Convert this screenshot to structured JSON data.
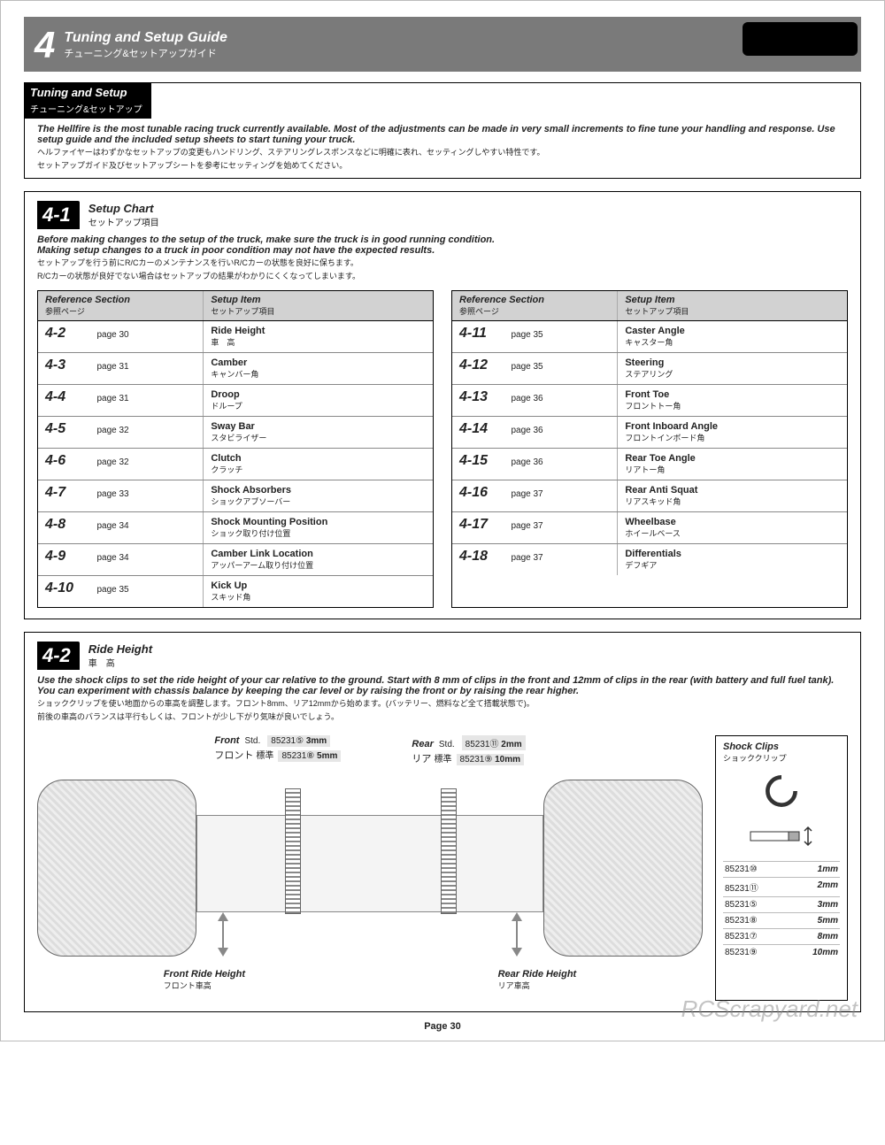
{
  "header": {
    "number": "4",
    "title_en": "Tuning and Setup Guide",
    "title_jp": "チューニング&セットアップガイド"
  },
  "tuning_box": {
    "label_en": "Tuning and Setup",
    "label_jp": "チューニング&セットアップ",
    "body_en": "The Hellfire is the most tunable racing truck currently available. Most of the adjustments can be made in very small increments to fine tune your handling and response. Use setup guide and the included setup sheets to start tuning your truck.",
    "body_jp1": "ヘルファイヤーはわずかなセットアップの変更もハンドリング、ステアリングレスポンスなどに明確に表れ、セッティングしやすい特性です。",
    "body_jp2": "セットアップガイド及びセットアップシートを参考にセッティングを始めてください。"
  },
  "section_41": {
    "sec": "4-1",
    "title_en": "Setup Chart",
    "title_jp": "セットアップ項目",
    "intro_en": "Before making changes to the setup of the truck, make sure the truck is in good running condition.\nMaking setup changes to a truck in poor condition may not have the expected results.",
    "intro_jp1": "セットアップを行う前にR/Cカーのメンテナンスを行いR/Cカーの状態を良好に保ちます。",
    "intro_jp2": "R/Cカーの状態が良好でない場合はセットアップの結果がわかりにくくなってしまいます。",
    "col_ref_en": "Reference Section",
    "col_ref_jp": "参照ページ",
    "col_item_en": "Setup Item",
    "col_item_jp": "セットアップ項目",
    "rows_left": [
      {
        "sec": "4-2",
        "page": "page 30",
        "en": "Ride Height",
        "jp": "車　高"
      },
      {
        "sec": "4-3",
        "page": "page 31",
        "en": "Camber",
        "jp": "キャンバー角"
      },
      {
        "sec": "4-4",
        "page": "page 31",
        "en": "Droop",
        "jp": "ドループ"
      },
      {
        "sec": "4-5",
        "page": "page 32",
        "en": "Sway Bar",
        "jp": "スタビライザー"
      },
      {
        "sec": "4-6",
        "page": "page 32",
        "en": "Clutch",
        "jp": "クラッチ"
      },
      {
        "sec": "4-7",
        "page": "page 33",
        "en": "Shock Absorbers",
        "jp": "ショックアブソーバー"
      },
      {
        "sec": "4-8",
        "page": "page 34",
        "en": "Shock Mounting Position",
        "jp": "ショック取り付け位置"
      },
      {
        "sec": "4-9",
        "page": "page 34",
        "en": "Camber Link Location",
        "jp": "アッパーアーム取り付け位置"
      },
      {
        "sec": "4-10",
        "page": "page 35",
        "en": "Kick Up",
        "jp": "スキッド角"
      }
    ],
    "rows_right": [
      {
        "sec": "4-11",
        "page": "page 35",
        "en": "Caster Angle",
        "jp": "キャスター角"
      },
      {
        "sec": "4-12",
        "page": "page 35",
        "en": "Steering",
        "jp": "ステアリング"
      },
      {
        "sec": "4-13",
        "page": "page 36",
        "en": "Front Toe",
        "jp": "フロントトー角"
      },
      {
        "sec": "4-14",
        "page": "page 36",
        "en": "Front Inboard Angle",
        "jp": "フロントインボード角"
      },
      {
        "sec": "4-15",
        "page": "page 36",
        "en": "Rear Toe Angle",
        "jp": "リアトー角"
      },
      {
        "sec": "4-16",
        "page": "page 37",
        "en": "Rear Anti Squat",
        "jp": "リアスキッド角"
      },
      {
        "sec": "4-17",
        "page": "page 37",
        "en": "Wheelbase",
        "jp": "ホイールベース"
      },
      {
        "sec": "4-18",
        "page": "page 37",
        "en": "Differentials",
        "jp": "デフギア"
      }
    ]
  },
  "section_42": {
    "sec": "4-2",
    "title_en": "Ride Height",
    "title_jp": "車　高",
    "intro_en": "Use the shock clips to set the ride height of your car relative to the ground. Start with 8 mm of clips in the front and 12mm of clips in the rear (with battery and full fuel tank).\nYou can experiment with chassis balance by keeping the car level or by raising the front or by raising the rear higher.",
    "intro_jp1": "ショッククリップを使い地面からの車高を調整します。フロント8mm、リア12mmから始めます。(バッテリー、燃料など全て搭載状態で)。",
    "intro_jp2": "前後の車高のバランスは平行もしくは、フロントが少し下がり気味が良いでしょう。",
    "front_en": "Front",
    "front_jp": "フロント",
    "rear_en": "Rear",
    "rear_jp": "リア",
    "std_en": "Std.",
    "std_jp": "標準",
    "front_specs": [
      {
        "pn": "85231⑤",
        "val": "3mm"
      },
      {
        "pn": "85231⑧",
        "val": "5mm"
      }
    ],
    "rear_specs": [
      {
        "pn": "85231⑪",
        "val": "2mm"
      },
      {
        "pn": "85231⑨",
        "val": "10mm"
      }
    ],
    "frh_en": "Front Ride Height",
    "frh_jp": "フロント車高",
    "rrh_en": "Rear Ride Height",
    "rrh_jp": "リア車高",
    "clips": {
      "title_en": "Shock Clips",
      "title_jp": "ショッククリップ",
      "rows": [
        {
          "pn": "85231⑩",
          "size": "1mm"
        },
        {
          "pn": "85231⑪",
          "size": "2mm"
        },
        {
          "pn": "85231⑤",
          "size": "3mm"
        },
        {
          "pn": "85231⑧",
          "size": "5mm"
        },
        {
          "pn": "85231⑦",
          "size": "8mm"
        },
        {
          "pn": "85231⑨",
          "size": "10mm"
        }
      ]
    }
  },
  "page_label": "Page 30",
  "watermark": "RCScrapyard.net",
  "colors": {
    "header_bg": "#7a7a7a",
    "table_header_bg": "#d2d2d2",
    "border": "#000000",
    "text": "#222222"
  }
}
